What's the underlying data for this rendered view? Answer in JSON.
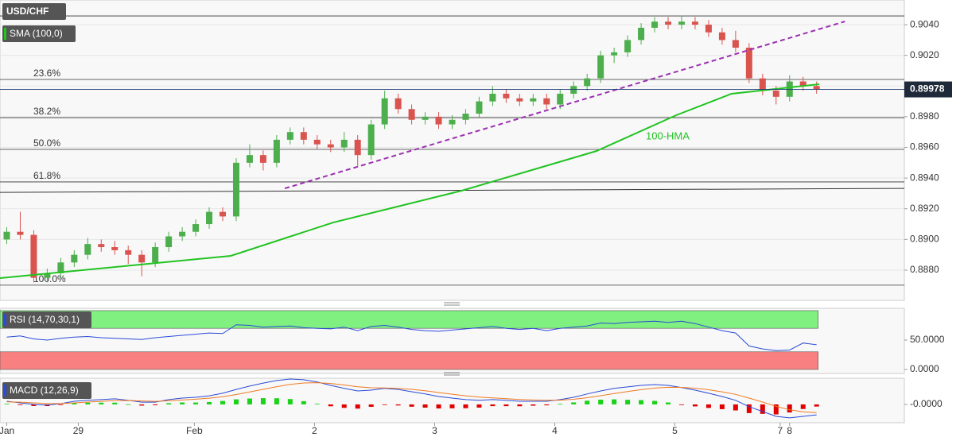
{
  "chart_data": [
    {
      "type": "candlestick",
      "title": "USD/CHF",
      "indicator": "SMA (100,0)",
      "up_color": "#4cae4c",
      "down_color": "#d9534f",
      "xlim": [
        -0.5,
        66.5
      ],
      "xticks": [
        {
          "value": 0,
          "label": "Jan"
        },
        {
          "value": 5.3,
          "label": "29"
        },
        {
          "value": 13.9,
          "label": "Feb"
        },
        {
          "value": 22.8,
          "label": "2"
        },
        {
          "value": 31.7,
          "label": "3"
        },
        {
          "value": 40.6,
          "label": "4"
        },
        {
          "value": 49.5,
          "label": "5"
        },
        {
          "value": 57.3,
          "label": "7"
        },
        {
          "value": 58,
          "label": "8"
        }
      ],
      "ylim": [
        0.88603,
        0.90561
      ],
      "yticks": [
        {
          "value": 0.888,
          "label": "0.8880"
        },
        {
          "value": 0.89,
          "label": "0.8900"
        },
        {
          "value": 0.892,
          "label": "0.8920"
        },
        {
          "value": 0.894,
          "label": "0.8940"
        },
        {
          "value": 0.896,
          "label": "0.8960"
        },
        {
          "value": 0.898,
          "label": "0.8980"
        },
        {
          "value": 0.9,
          "label": "0.9000"
        },
        {
          "value": 0.902,
          "label": "0.9020"
        },
        {
          "value": 0.904,
          "label": "0.9040"
        }
      ],
      "grid": true,
      "ohlc": [
        [
          0.89,
          0.8908,
          0.8897,
          0.8905
        ],
        [
          0.8905,
          0.8918,
          0.89,
          0.8903
        ],
        [
          0.8903,
          0.8906,
          0.8872,
          0.8875
        ],
        [
          0.8875,
          0.8881,
          0.8872,
          0.8878
        ],
        [
          0.8878,
          0.8888,
          0.8875,
          0.8885
        ],
        [
          0.8885,
          0.8893,
          0.8882,
          0.889
        ],
        [
          0.889,
          0.8901,
          0.8887,
          0.8897
        ],
        [
          0.8897,
          0.89,
          0.8892,
          0.8895
        ],
        [
          0.8895,
          0.8899,
          0.889,
          0.8893
        ],
        [
          0.8893,
          0.8896,
          0.8884,
          0.889
        ],
        [
          0.889,
          0.8893,
          0.8876,
          0.8885
        ],
        [
          0.8885,
          0.8898,
          0.8882,
          0.8895
        ],
        [
          0.8895,
          0.8905,
          0.8892,
          0.8902
        ],
        [
          0.8902,
          0.8908,
          0.8899,
          0.8905
        ],
        [
          0.8905,
          0.8913,
          0.8902,
          0.891
        ],
        [
          0.891,
          0.8921,
          0.8907,
          0.8918
        ],
        [
          0.8918,
          0.8921,
          0.8912,
          0.8915
        ],
        [
          0.8915,
          0.8953,
          0.8912,
          0.895
        ],
        [
          0.895,
          0.8962,
          0.8947,
          0.8955
        ],
        [
          0.8955,
          0.8958,
          0.8945,
          0.895
        ],
        [
          0.895,
          0.8968,
          0.8947,
          0.8965
        ],
        [
          0.8965,
          0.8973,
          0.8962,
          0.897
        ],
        [
          0.897,
          0.8973,
          0.8962,
          0.8965
        ],
        [
          0.8965,
          0.8968,
          0.8959,
          0.8962
        ],
        [
          0.8962,
          0.8965,
          0.8957,
          0.896
        ],
        [
          0.896,
          0.897,
          0.8957,
          0.8965
        ],
        [
          0.8965,
          0.8968,
          0.8948,
          0.8955
        ],
        [
          0.8955,
          0.8978,
          0.8952,
          0.8975
        ],
        [
          0.8975,
          0.8997,
          0.8972,
          0.8992
        ],
        [
          0.8992,
          0.8995,
          0.8982,
          0.8985
        ],
        [
          0.8985,
          0.8988,
          0.8975,
          0.8978
        ],
        [
          0.8978,
          0.8983,
          0.8975,
          0.898
        ],
        [
          0.898,
          0.8983,
          0.8972,
          0.8975
        ],
        [
          0.8975,
          0.8981,
          0.8972,
          0.8978
        ],
        [
          0.8978,
          0.8985,
          0.8975,
          0.8982
        ],
        [
          0.8982,
          0.8993,
          0.8979,
          0.899
        ],
        [
          0.899,
          0.9,
          0.8987,
          0.8995
        ],
        [
          0.8995,
          0.8998,
          0.8989,
          0.8992
        ],
        [
          0.8992,
          0.8995,
          0.8987,
          0.899
        ],
        [
          0.899,
          0.8995,
          0.8987,
          0.8992
        ],
        [
          0.8992,
          0.8995,
          0.8985,
          0.8988
        ],
        [
          0.8988,
          0.8998,
          0.8985,
          0.8995
        ],
        [
          0.8995,
          0.9003,
          0.8992,
          0.9
        ],
        [
          0.9,
          0.9008,
          0.8997,
          0.9005
        ],
        [
          0.9005,
          0.9023,
          0.9002,
          0.902
        ],
        [
          0.902,
          0.9025,
          0.9015,
          0.9022
        ],
        [
          0.9022,
          0.9033,
          0.9019,
          0.903
        ],
        [
          0.903,
          0.9041,
          0.9027,
          0.9038
        ],
        [
          0.9038,
          0.9045,
          0.9035,
          0.9042
        ],
        [
          0.9042,
          0.9045,
          0.9037,
          0.904
        ],
        [
          0.904,
          0.9046,
          0.9037,
          0.9042
        ],
        [
          0.9042,
          0.9045,
          0.9037,
          0.904
        ],
        [
          0.904,
          0.9043,
          0.9032,
          0.9035
        ],
        [
          0.9035,
          0.9038,
          0.9027,
          0.903
        ],
        [
          0.903,
          0.9036,
          0.9022,
          0.9025
        ],
        [
          0.9025,
          0.9028,
          0.9002,
          0.9005
        ],
        [
          0.9005,
          0.9008,
          0.8994,
          0.8997
        ],
        [
          0.8997,
          0.9,
          0.8988,
          0.8993
        ],
        [
          0.8993,
          0.9007,
          0.899,
          0.9003
        ],
        [
          0.9003,
          0.9006,
          0.8997,
          0.9
        ],
        [
          0.9,
          0.9003,
          0.8995,
          0.8998
        ]
      ],
      "hma": {
        "name": "100-HMA",
        "color": "#22c322",
        "x": [
          -0.5,
          16.6,
          24.2,
          33.7,
          43.7,
          49.6,
          53.7,
          60.2
        ],
        "values": [
          0.88748,
          0.88893,
          0.89111,
          0.89318,
          0.89577,
          0.8981,
          0.8995,
          0.90012
        ]
      },
      "trendline": {
        "color": "#9b30b0",
        "x": [
          20.6,
          62.1
        ],
        "values": [
          0.89333,
          0.90421
        ]
      },
      "support_line": {
        "color": "#333333",
        "x": [
          -0.5,
          66.5
        ],
        "values": [
          0.89307,
          0.89333
        ]
      },
      "levels": [
        {
          "value": 0.90457
        },
        {
          "value": 0.90043,
          "label": "23.6%"
        },
        {
          "value": 0.89794,
          "label": "38.2%"
        },
        {
          "value": 0.89587,
          "label": "50.0%"
        },
        {
          "value": 0.89375,
          "label": "61.8%"
        },
        {
          "value": 0.88702,
          "label": "100.0%"
        }
      ],
      "last_price": 0.89978
    },
    {
      "type": "line",
      "title": "RSI (14,70,30,1)",
      "color": "#2a4bd7",
      "ylim": [
        -6.8,
        104
      ],
      "yticks": [
        {
          "value": 50,
          "label": "50.0000"
        },
        {
          "value": 0,
          "label": "0.0000"
        }
      ],
      "bands": [
        {
          "from": 70,
          "to": 100,
          "color": "#80f080"
        },
        {
          "from": 0,
          "to": 30,
          "color": "#f88080"
        }
      ],
      "values": [
        55,
        57,
        52,
        50,
        53,
        55,
        56,
        54,
        53,
        52,
        51,
        54,
        56,
        58,
        60,
        62,
        61,
        76,
        75,
        72,
        73,
        74,
        71,
        70,
        69,
        72,
        66,
        73,
        75,
        72,
        68,
        66,
        65,
        67,
        69,
        71,
        73,
        70,
        68,
        70,
        66,
        70,
        72,
        74,
        79,
        78,
        80,
        81,
        82,
        80,
        82,
        78,
        72,
        66,
        62,
        40,
        35,
        32,
        33,
        45,
        42
      ]
    },
    {
      "type": "macd",
      "title": "MACD (12,26,9)",
      "ylim": [
        -0.00072,
        0.00103
      ],
      "yticks": [
        {
          "value": 0,
          "label": "-0.0000"
        }
      ],
      "series": [
        {
          "color": "#2a4bd7",
          "values": [
            0.000125,
            6e-05,
            0,
            -3e-05,
            3e-05,
            0.000125,
            0.00016,
            0.00019,
            0.00022,
            0.00016,
            9e-05,
            9e-05,
            0.00019,
            0.00025,
            0.00028,
            0.00034,
            0.00044,
            0.00059,
            0.00072,
            0.00084,
            0.00094,
            0.001,
            0.00097,
            0.00088,
            0.00075,
            0.00063,
            0.00053,
            0.00056,
            0.00063,
            0.00059,
            0.0005,
            0.00041,
            0.00031,
            0.00025,
            0.00019,
            0.00016,
            0.00019,
            0.00016,
            0.000125,
            0.000125,
            0.000125,
            0.00019,
            0.00028,
            0.00041,
            0.00053,
            0.00063,
            0.00069,
            0.00075,
            0.00078,
            0.00075,
            0.00066,
            0.00056,
            0.00044,
            0.00031,
            0.00016,
            -9e-05,
            -0.00028,
            -0.00047,
            -0.00053,
            -0.00047,
            -0.00041
          ]
        },
        {
          "color": "#f07a22",
          "values": [
            0.0001,
            8.8e-05,
            6.2e-05,
            3.4e-05,
            3.3e-05,
            6.1e-05,
            9.1e-05,
            0.000121,
            0.000151,
            0.000154,
            0.000135,
            0.000122,
            0.000142,
            0.000174,
            0.000206,
            0.000246,
            0.000304,
            0.00039,
            0.000489,
            0.000594,
            0.000698,
            0.000789,
            0.000843,
            0.000854,
            0.000823,
            0.000765,
            0.000695,
            0.000655,
            0.000647,
            0.00063,
            0.000591,
            0.000537,
            0.000469,
            0.000403,
            0.000339,
            0.000285,
            0.000257,
            0.000228,
            0.000197,
            0.000175,
            0.00016,
            0.000169,
            0.000202,
            0.000264,
            0.000344,
            0.00043,
            0.000508,
            0.000581,
            0.000641,
            0.000674,
            0.00067,
            0.000637,
            0.000578,
            0.000497,
            0.000396,
            0.00025,
            9.1e-05,
            -7.7e-05,
            -0.000213,
            -0.00029,
            -0.000326
          ]
        }
      ],
      "histogram": {
        "up_color": "#19d219",
        "down_color": "#e00000",
        "values": [
          2.5e-05,
          -2.8e-05,
          -6.2e-05,
          -6.4e-05,
          -3e-06,
          6.4e-05,
          6.9e-05,
          6.9e-05,
          6.9e-05,
          6e-06,
          -4.5e-05,
          -3.2e-05,
          4.8e-05,
          7.6e-05,
          7.4e-05,
          9.4e-05,
          0.000136,
          0.0002,
          0.000231,
          0.000246,
          0.000242,
          0.000211,
          0.000127,
          2.6e-05,
          -7.3e-05,
          -0.000135,
          -0.000165,
          -9.5e-05,
          -1.7e-05,
          -4e-05,
          -9.1e-05,
          -0.000127,
          -0.000159,
          -0.000153,
          -0.000149,
          -0.000125,
          -6.7e-05,
          -6.8e-05,
          -7.2e-05,
          -5e-05,
          -3.5e-05,
          2.1e-05,
          7.8e-05,
          0.000146,
          0.000186,
          0.0002,
          0.000182,
          0.000169,
          0.000139,
          7.6e-05,
          -1e-05,
          -7.7e-05,
          -0.000138,
          -0.000187,
          -0.000236,
          -0.00034,
          -0.000371,
          -0.000393,
          -0.000317,
          -0.00018,
          -8.4e-05
        ]
      }
    }
  ]
}
